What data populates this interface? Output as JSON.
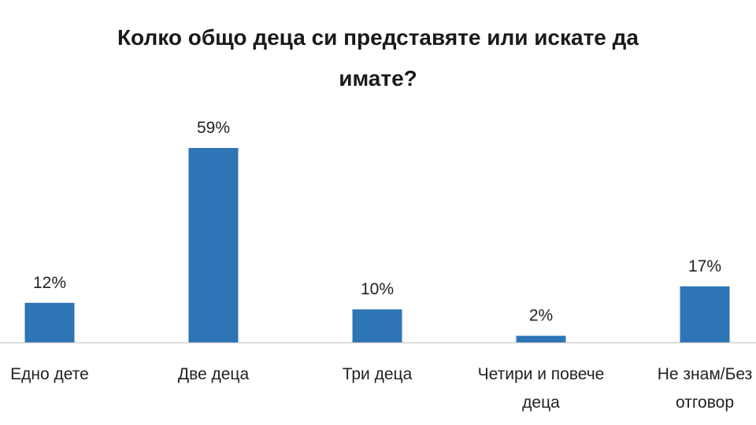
{
  "chart_data": {
    "type": "bar",
    "title_lines": [
      "Колко общо деца си представяте или искате да",
      "имате?"
    ],
    "categories": [
      [
        "Едно дете"
      ],
      [
        "Две деца"
      ],
      [
        "Три деца"
      ],
      [
        "Четири и повече",
        "деца"
      ],
      [
        "Не знам/Без",
        "отговор"
      ]
    ],
    "values": [
      12,
      59,
      10,
      2,
      17
    ],
    "value_labels": [
      "12%",
      "59%",
      "10%",
      "2%",
      "17%"
    ],
    "ylim": [
      0,
      59
    ],
    "grid": false,
    "legend": "none",
    "bar_color": "#2e75b6",
    "axis_color": "#d0d0d0"
  }
}
